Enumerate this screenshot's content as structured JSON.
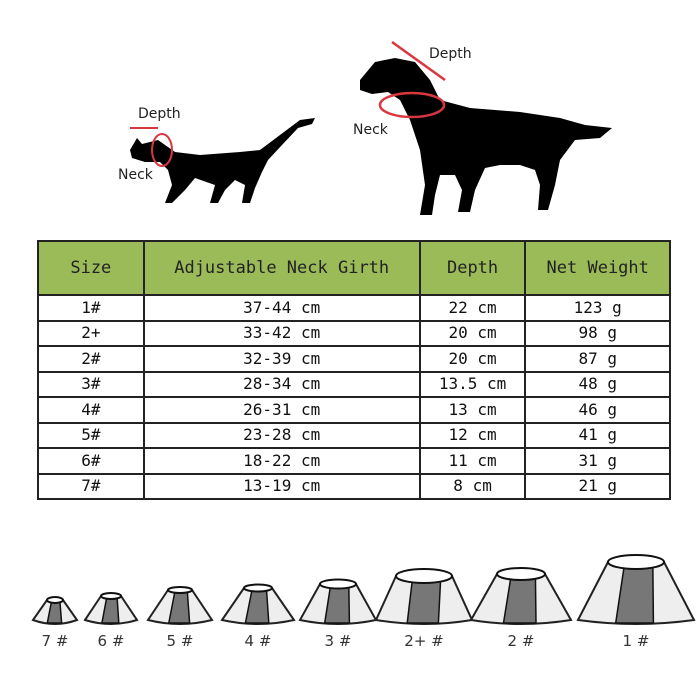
{
  "diagram": {
    "cat": {
      "depth_label": "Depth",
      "neck_label": "Neck"
    },
    "dog": {
      "depth_label": "Depth",
      "neck_label": "Neck"
    },
    "measure_color": "#d9363e"
  },
  "table": {
    "header_color": "#9bbb59",
    "headers": [
      "Size",
      "Adjustable Neck Girth",
      "Depth",
      "Net Weight"
    ],
    "rows": [
      [
        "1#",
        "37-44 cm",
        "22 cm",
        "123 g"
      ],
      [
        "2+",
        "33-42 cm",
        "20 cm",
        "98 g"
      ],
      [
        "2#",
        "32-39 cm",
        "20 cm",
        "87 g"
      ],
      [
        "3#",
        "28-34 cm",
        "13.5 cm",
        "48 g"
      ],
      [
        "4#",
        "26-31 cm",
        "13 cm",
        "46 g"
      ],
      [
        "5#",
        "23-28 cm",
        "12 cm",
        "41 g"
      ],
      [
        "6#",
        "18-22 cm",
        "11 cm",
        "31 g"
      ],
      [
        "7#",
        "13-19 cm",
        "8 cm",
        "21 g"
      ]
    ]
  },
  "cones": [
    "7 #",
    "6 #",
    "5 #",
    "4 #",
    "3 #",
    "2+ #",
    "2 #",
    "1 #"
  ]
}
